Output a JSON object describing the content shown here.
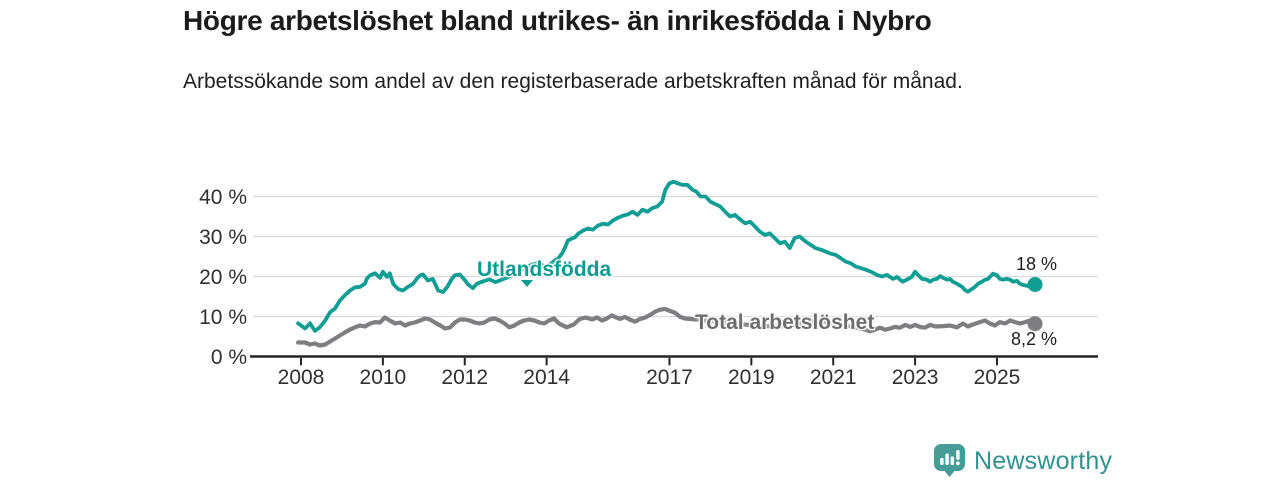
{
  "header": {
    "title": "Högre arbetslöshet bland utrikes- än inrikesfödda i Nybro",
    "subtitle": "Arbetssökande som andel av den registerbaserade arbetskraften månad för månad."
  },
  "footer": {
    "brand": "Newsworthy",
    "brand_color": "#31938d",
    "logo_color": "#479c97"
  },
  "chart_data": {
    "type": "line",
    "title": "Högre arbetslöshet bland utrikes- än inrikesfödda i Nybro",
    "subtitle": "Arbetssökande som andel av den registerbaserade arbetskraften månad för månad.",
    "unit": "%",
    "grid": "horizontal",
    "legend_position": "inline-labels",
    "x_axis": {
      "range": [
        2007.8,
        2026.45
      ],
      "ticks": [
        2008,
        2010,
        2012,
        2014,
        2017,
        2019,
        2021,
        2023,
        2025
      ],
      "tick_labels": [
        "2008",
        "2010",
        "2012",
        "2014",
        "2017",
        "2019",
        "2021",
        "2023",
        "2025"
      ]
    },
    "y_axis": {
      "range": [
        0,
        46
      ],
      "ticks": [
        0,
        10,
        20,
        30,
        40
      ],
      "tick_labels": [
        "0 %",
        "10 %",
        "20 %",
        "30 %",
        "40 %"
      ]
    },
    "colors": {
      "grid": "#dadada",
      "axis": "#242424",
      "tick_text": "#2f2f2f"
    },
    "series": [
      {
        "name": "Utlandsfödda",
        "color": "#109e94",
        "width": 3.8,
        "end_value": 18,
        "end_label": "18 %",
        "points": [
          [
            2007.93,
            8.3
          ],
          [
            2008.1,
            7.0
          ],
          [
            2008.22,
            8.3
          ],
          [
            2008.34,
            6.4
          ],
          [
            2008.46,
            7.3
          ],
          [
            2008.59,
            9.0
          ],
          [
            2008.71,
            11.1
          ],
          [
            2008.83,
            12.0
          ],
          [
            2008.95,
            14.0
          ],
          [
            2009.07,
            15.3
          ],
          [
            2009.2,
            16.5
          ],
          [
            2009.32,
            17.3
          ],
          [
            2009.44,
            17.4
          ],
          [
            2009.56,
            18.2
          ],
          [
            2009.61,
            19.5
          ],
          [
            2009.69,
            20.3
          ],
          [
            2009.81,
            20.8
          ],
          [
            2009.93,
            19.7
          ],
          [
            2010.0,
            21.2
          ],
          [
            2010.1,
            19.9
          ],
          [
            2010.17,
            20.8
          ],
          [
            2010.25,
            18.2
          ],
          [
            2010.37,
            16.9
          ],
          [
            2010.49,
            16.5
          ],
          [
            2010.61,
            17.4
          ],
          [
            2010.74,
            18.2
          ],
          [
            2010.83,
            19.5
          ],
          [
            2010.91,
            20.3
          ],
          [
            2010.98,
            20.5
          ],
          [
            2011.1,
            19.0
          ],
          [
            2011.22,
            19.4
          ],
          [
            2011.35,
            16.5
          ],
          [
            2011.47,
            16.1
          ],
          [
            2011.57,
            17.4
          ],
          [
            2011.69,
            19.5
          ],
          [
            2011.76,
            20.3
          ],
          [
            2011.88,
            20.5
          ],
          [
            2012.01,
            19.0
          ],
          [
            2012.08,
            18.0
          ],
          [
            2012.2,
            17.1
          ],
          [
            2012.3,
            18.2
          ],
          [
            2012.45,
            18.8
          ],
          [
            2012.6,
            19.3
          ],
          [
            2012.75,
            18.6
          ],
          [
            2012.9,
            19.2
          ],
          [
            2013.05,
            19.8
          ],
          [
            2013.2,
            20.5
          ],
          [
            2013.35,
            21.5
          ],
          [
            2013.5,
            22.3
          ],
          [
            2013.65,
            23.0
          ],
          [
            2013.8,
            23.4
          ],
          [
            2013.9,
            22.8
          ],
          [
            2014.0,
            22.3
          ],
          [
            2014.1,
            23.2
          ],
          [
            2014.2,
            24.0
          ],
          [
            2014.28,
            24.5
          ],
          [
            2014.38,
            25.8
          ],
          [
            2014.45,
            27.3
          ],
          [
            2014.52,
            29.0
          ],
          [
            2014.62,
            29.5
          ],
          [
            2014.69,
            29.8
          ],
          [
            2014.77,
            30.7
          ],
          [
            2014.89,
            31.5
          ],
          [
            2015.01,
            32.0
          ],
          [
            2015.13,
            31.7
          ],
          [
            2015.25,
            32.7
          ],
          [
            2015.38,
            33.2
          ],
          [
            2015.5,
            33.0
          ],
          [
            2015.62,
            34.0
          ],
          [
            2015.74,
            34.7
          ],
          [
            2015.86,
            35.2
          ],
          [
            2015.98,
            35.5
          ],
          [
            2016.1,
            36.2
          ],
          [
            2016.22,
            35.4
          ],
          [
            2016.34,
            36.7
          ],
          [
            2016.46,
            36.2
          ],
          [
            2016.58,
            37.1
          ],
          [
            2016.7,
            37.5
          ],
          [
            2016.82,
            38.7
          ],
          [
            2016.9,
            41.7
          ],
          [
            2017.0,
            43.3
          ],
          [
            2017.1,
            43.7
          ],
          [
            2017.2,
            43.3
          ],
          [
            2017.32,
            42.9
          ],
          [
            2017.44,
            42.9
          ],
          [
            2017.56,
            41.7
          ],
          [
            2017.66,
            41.2
          ],
          [
            2017.76,
            40.0
          ],
          [
            2017.88,
            40.0
          ],
          [
            2018.0,
            38.7
          ],
          [
            2018.1,
            38.2
          ],
          [
            2018.24,
            37.5
          ],
          [
            2018.36,
            36.2
          ],
          [
            2018.48,
            35.0
          ],
          [
            2018.6,
            35.4
          ],
          [
            2018.73,
            34.2
          ],
          [
            2018.85,
            33.3
          ],
          [
            2018.97,
            33.7
          ],
          [
            2019.09,
            32.5
          ],
          [
            2019.21,
            31.2
          ],
          [
            2019.33,
            30.4
          ],
          [
            2019.45,
            30.8
          ],
          [
            2019.57,
            29.6
          ],
          [
            2019.7,
            28.3
          ],
          [
            2019.82,
            28.7
          ],
          [
            2019.94,
            27.1
          ],
          [
            2020.06,
            29.6
          ],
          [
            2020.18,
            30.0
          ],
          [
            2020.33,
            28.7
          ],
          [
            2020.45,
            27.9
          ],
          [
            2020.57,
            27.1
          ],
          [
            2020.7,
            26.7
          ],
          [
            2020.82,
            26.2
          ],
          [
            2020.94,
            25.7
          ],
          [
            2021.06,
            25.4
          ],
          [
            2021.18,
            24.6
          ],
          [
            2021.31,
            23.7
          ],
          [
            2021.43,
            23.3
          ],
          [
            2021.55,
            22.5
          ],
          [
            2021.67,
            22.1
          ],
          [
            2021.8,
            21.7
          ],
          [
            2021.92,
            21.2
          ],
          [
            2022.07,
            20.4
          ],
          [
            2022.19,
            20.0
          ],
          [
            2022.31,
            20.4
          ],
          [
            2022.46,
            19.4
          ],
          [
            2022.56,
            19.9
          ],
          [
            2022.63,
            19.2
          ],
          [
            2022.7,
            18.7
          ],
          [
            2022.83,
            19.4
          ],
          [
            2022.92,
            19.9
          ],
          [
            2023.0,
            21.2
          ],
          [
            2023.07,
            20.4
          ],
          [
            2023.17,
            19.4
          ],
          [
            2023.29,
            19.2
          ],
          [
            2023.36,
            18.7
          ],
          [
            2023.44,
            19.2
          ],
          [
            2023.53,
            19.4
          ],
          [
            2023.61,
            20.1
          ],
          [
            2023.68,
            19.7
          ],
          [
            2023.78,
            19.2
          ],
          [
            2023.85,
            19.4
          ],
          [
            2023.92,
            18.7
          ],
          [
            2024.02,
            18.2
          ],
          [
            2024.15,
            17.4
          ],
          [
            2024.22,
            16.6
          ],
          [
            2024.29,
            16.2
          ],
          [
            2024.39,
            16.9
          ],
          [
            2024.46,
            17.4
          ],
          [
            2024.54,
            18.2
          ],
          [
            2024.63,
            18.7
          ],
          [
            2024.71,
            19.2
          ],
          [
            2024.78,
            19.4
          ],
          [
            2024.9,
            20.7
          ],
          [
            2025.0,
            20.3
          ],
          [
            2025.07,
            19.4
          ],
          [
            2025.15,
            19.2
          ],
          [
            2025.24,
            19.4
          ],
          [
            2025.32,
            19.2
          ],
          [
            2025.39,
            18.7
          ],
          [
            2025.49,
            18.9
          ],
          [
            2025.56,
            18.2
          ],
          [
            2025.63,
            17.9
          ],
          [
            2025.73,
            17.7
          ],
          [
            2025.81,
            17.4
          ],
          [
            2025.93,
            18.0
          ]
        ]
      },
      {
        "name": "Total arbetslöshet",
        "color": "#7d7d82",
        "width": 4.2,
        "end_value": 8.2,
        "end_label": "8,2 %",
        "points": [
          [
            2007.93,
            3.5
          ],
          [
            2008.1,
            3.5
          ],
          [
            2008.22,
            3.0
          ],
          [
            2008.34,
            3.25
          ],
          [
            2008.46,
            2.75
          ],
          [
            2008.59,
            3.0
          ],
          [
            2008.71,
            3.75
          ],
          [
            2008.83,
            4.5
          ],
          [
            2008.95,
            5.25
          ],
          [
            2009.07,
            6.0
          ],
          [
            2009.2,
            6.75
          ],
          [
            2009.32,
            7.3
          ],
          [
            2009.44,
            7.75
          ],
          [
            2009.56,
            7.5
          ],
          [
            2009.69,
            8.25
          ],
          [
            2009.81,
            8.6
          ],
          [
            2009.93,
            8.5
          ],
          [
            2010.05,
            9.75
          ],
          [
            2010.17,
            9.0
          ],
          [
            2010.3,
            8.25
          ],
          [
            2010.42,
            8.5
          ],
          [
            2010.54,
            7.75
          ],
          [
            2010.66,
            8.25
          ],
          [
            2010.78,
            8.5
          ],
          [
            2010.91,
            9.0
          ],
          [
            2011.03,
            9.5
          ],
          [
            2011.15,
            9.25
          ],
          [
            2011.27,
            8.5
          ],
          [
            2011.4,
            7.75
          ],
          [
            2011.52,
            7.0
          ],
          [
            2011.64,
            7.25
          ],
          [
            2011.76,
            8.5
          ],
          [
            2011.88,
            9.25
          ],
          [
            2012.0,
            9.25
          ],
          [
            2012.12,
            9.0
          ],
          [
            2012.24,
            8.5
          ],
          [
            2012.36,
            8.25
          ],
          [
            2012.48,
            8.5
          ],
          [
            2012.6,
            9.25
          ],
          [
            2012.73,
            9.5
          ],
          [
            2012.85,
            9.0
          ],
          [
            2012.97,
            8.25
          ],
          [
            2013.09,
            7.3
          ],
          [
            2013.21,
            7.75
          ],
          [
            2013.33,
            8.5
          ],
          [
            2013.45,
            9.0
          ],
          [
            2013.57,
            9.25
          ],
          [
            2013.7,
            9.0
          ],
          [
            2013.82,
            8.5
          ],
          [
            2013.94,
            8.25
          ],
          [
            2014.06,
            9.0
          ],
          [
            2014.18,
            9.5
          ],
          [
            2014.3,
            8.25
          ],
          [
            2014.49,
            7.3
          ],
          [
            2014.66,
            8.0
          ],
          [
            2014.81,
            9.4
          ],
          [
            2014.96,
            9.75
          ],
          [
            2015.11,
            9.25
          ],
          [
            2015.23,
            9.75
          ],
          [
            2015.35,
            9.0
          ],
          [
            2015.47,
            9.5
          ],
          [
            2015.59,
            10.25
          ],
          [
            2015.79,
            9.4
          ],
          [
            2015.91,
            9.9
          ],
          [
            2016.04,
            9.2
          ],
          [
            2016.16,
            8.7
          ],
          [
            2016.28,
            9.4
          ],
          [
            2016.4,
            9.7
          ],
          [
            2016.53,
            10.4
          ],
          [
            2016.65,
            11.2
          ],
          [
            2016.77,
            11.7
          ],
          [
            2016.89,
            11.9
          ],
          [
            2017.01,
            11.4
          ],
          [
            2017.14,
            10.9
          ],
          [
            2017.26,
            9.9
          ],
          [
            2017.38,
            9.5
          ],
          [
            2017.6,
            9.3
          ],
          [
            2017.9,
            9.0
          ],
          [
            2018.2,
            8.6
          ],
          [
            2018.5,
            8.3
          ],
          [
            2018.8,
            8.0
          ],
          [
            2019.1,
            7.8
          ],
          [
            2019.4,
            7.6
          ],
          [
            2019.7,
            7.5
          ],
          [
            2020.0,
            7.8
          ],
          [
            2020.3,
            8.6
          ],
          [
            2020.6,
            8.9
          ],
          [
            2020.9,
            8.5
          ],
          [
            2021.2,
            8.0
          ],
          [
            2021.5,
            7.4
          ],
          [
            2021.78,
            6.7
          ],
          [
            2021.9,
            6.3
          ],
          [
            2022.02,
            6.7
          ],
          [
            2022.14,
            7.2
          ],
          [
            2022.27,
            6.7
          ],
          [
            2022.39,
            7.0
          ],
          [
            2022.51,
            7.4
          ],
          [
            2022.63,
            7.2
          ],
          [
            2022.76,
            7.9
          ],
          [
            2022.88,
            7.4
          ],
          [
            2023.0,
            7.9
          ],
          [
            2023.12,
            7.4
          ],
          [
            2023.24,
            7.2
          ],
          [
            2023.37,
            7.9
          ],
          [
            2023.5,
            7.5
          ],
          [
            2023.7,
            7.6
          ],
          [
            2023.85,
            7.75
          ],
          [
            2024.02,
            7.3
          ],
          [
            2024.17,
            8.25
          ],
          [
            2024.29,
            7.5
          ],
          [
            2024.41,
            8.0
          ],
          [
            2024.58,
            8.6
          ],
          [
            2024.71,
            9.0
          ],
          [
            2024.83,
            8.25
          ],
          [
            2024.95,
            7.75
          ],
          [
            2025.07,
            8.6
          ],
          [
            2025.2,
            8.25
          ],
          [
            2025.32,
            9.0
          ],
          [
            2025.44,
            8.6
          ],
          [
            2025.56,
            8.25
          ],
          [
            2025.69,
            8.6
          ],
          [
            2025.81,
            9.0
          ],
          [
            2025.93,
            8.2
          ]
        ]
      }
    ]
  }
}
